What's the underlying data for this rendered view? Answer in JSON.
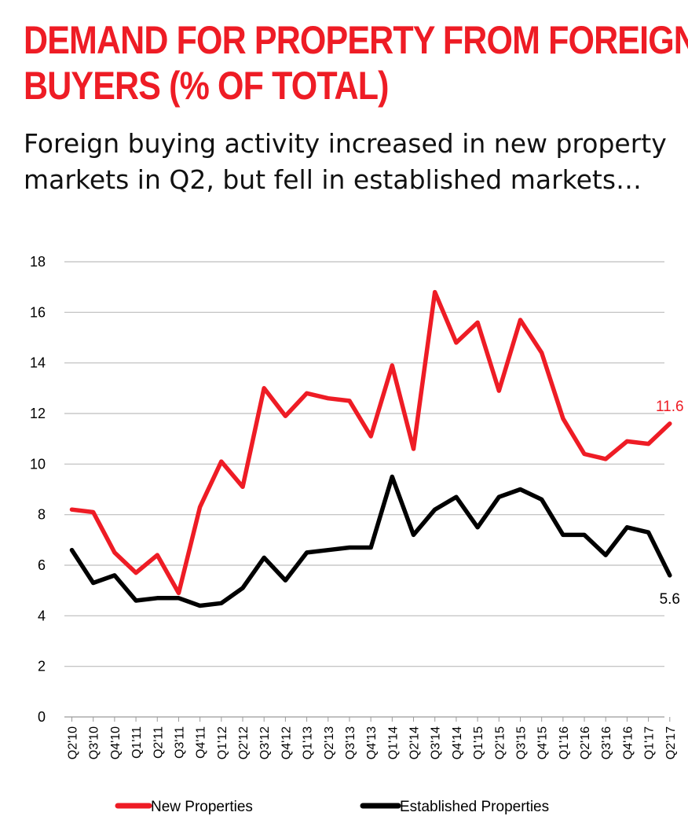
{
  "chart_data": {
    "type": "line",
    "title": "DEMAND FOR PROPERTY FROM FOREIGN BUYERS (% OF TOTAL)",
    "title_lines": [
      "DEMAND FOR PROPERTY FROM FOREIGN",
      "BUYERS (% OF TOTAL)"
    ],
    "subtitle": "Foreign buying activity increased in new property markets in Q2, but fell in established markets…",
    "xlabel": "",
    "ylabel": "",
    "ylim": [
      0,
      18
    ],
    "yticks": [
      0,
      2,
      4,
      6,
      8,
      10,
      12,
      14,
      16,
      18
    ],
    "grid": true,
    "legend_position": "bottom",
    "categories": [
      "Q2'10",
      "Q3'10",
      "Q4'10",
      "Q1'11",
      "Q2'11",
      "Q3'11",
      "Q4'11",
      "Q1'12",
      "Q2'12",
      "Q3'12",
      "Q4'12",
      "Q1'13",
      "Q2'13",
      "Q3'13",
      "Q4'13",
      "Q1'14",
      "Q2'14",
      "Q3'14",
      "Q4'14",
      "Q1'15",
      "Q2'15",
      "Q3'15",
      "Q4'15",
      "Q1'16",
      "Q2'16",
      "Q3'16",
      "Q4'16",
      "Q1'17",
      "Q2'17"
    ],
    "series": [
      {
        "name": "New Properties",
        "color": "#ee1c25",
        "end_label": "11.6",
        "values": [
          8.2,
          8.1,
          6.5,
          5.7,
          6.4,
          4.9,
          8.3,
          10.1,
          9.1,
          13.0,
          11.9,
          12.8,
          12.6,
          12.5,
          11.1,
          13.9,
          10.6,
          16.8,
          14.8,
          15.6,
          12.9,
          15.7,
          14.4,
          11.8,
          10.4,
          10.2,
          10.9,
          10.8,
          11.6
        ]
      },
      {
        "name": "Established Properties",
        "color": "#000000",
        "end_label": "5.6",
        "values": [
          6.6,
          5.3,
          5.6,
          4.6,
          4.7,
          4.7,
          4.4,
          4.5,
          5.1,
          6.3,
          5.4,
          6.5,
          6.6,
          6.7,
          6.7,
          9.5,
          7.2,
          8.2,
          8.7,
          7.5,
          8.7,
          9.0,
          8.6,
          7.2,
          7.2,
          6.4,
          7.5,
          7.3,
          5.6
        ]
      }
    ]
  }
}
